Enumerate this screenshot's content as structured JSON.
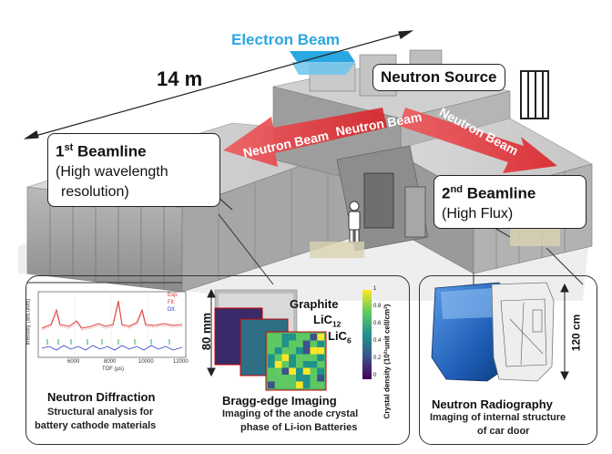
{
  "scale_label": "14 m",
  "electron_beam_label": "Electron Beam",
  "neutron_source_label": "Neutron Source",
  "neutron_beam_label_left": "Neutron Beam",
  "neutron_beam_label_center": "Neutron Beam",
  "neutron_beam_label_right": "Neutron Beam",
  "beamline1": {
    "number": "1",
    "suffix": "st",
    "title": "Beamline",
    "line2": "(High wavelength",
    "line3": "resolution)"
  },
  "beamline2": {
    "number": "2",
    "suffix": "nd",
    "title": "Beamline",
    "line2": "(High Flux)"
  },
  "diffraction": {
    "title": "Neutron Diffraction",
    "line1": "Structural analysis for",
    "line2": "battery cathode materials",
    "xlabel": "TOF (μs)",
    "ylabel": "Intensity (arb.units)",
    "ticks_x": [
      "6000",
      "8000",
      "10000",
      "12000"
    ],
    "legend": [
      "Exp.",
      "Fit.",
      "Dif."
    ]
  },
  "bragg": {
    "title": "Bragg-edge Imaging",
    "line1": "Imaging of the anode crystal",
    "line2": "phase of Li-ion Batteries",
    "dim_label": "80 mm",
    "graphite_label": "Graphite",
    "lic12_label": "LiC",
    "lic12_sub": "12",
    "lic6_label": "LiC",
    "lic6_sub": "6",
    "colorbar_label": "Crystal density (10²¹unit cell/cm²)",
    "colorbar_ticks": [
      "1",
      "0.8",
      "0.6",
      "0.4",
      "0.2",
      "0"
    ]
  },
  "radiography": {
    "title": "Neutron Radiography",
    "line1": "Imaging of internal structure",
    "line2": "of car door",
    "dim_label": "120 cm"
  },
  "colors": {
    "beam_red": "#e8383d",
    "electron_blue": "#2aa7e0",
    "door_blue": "#1f5fb8"
  }
}
